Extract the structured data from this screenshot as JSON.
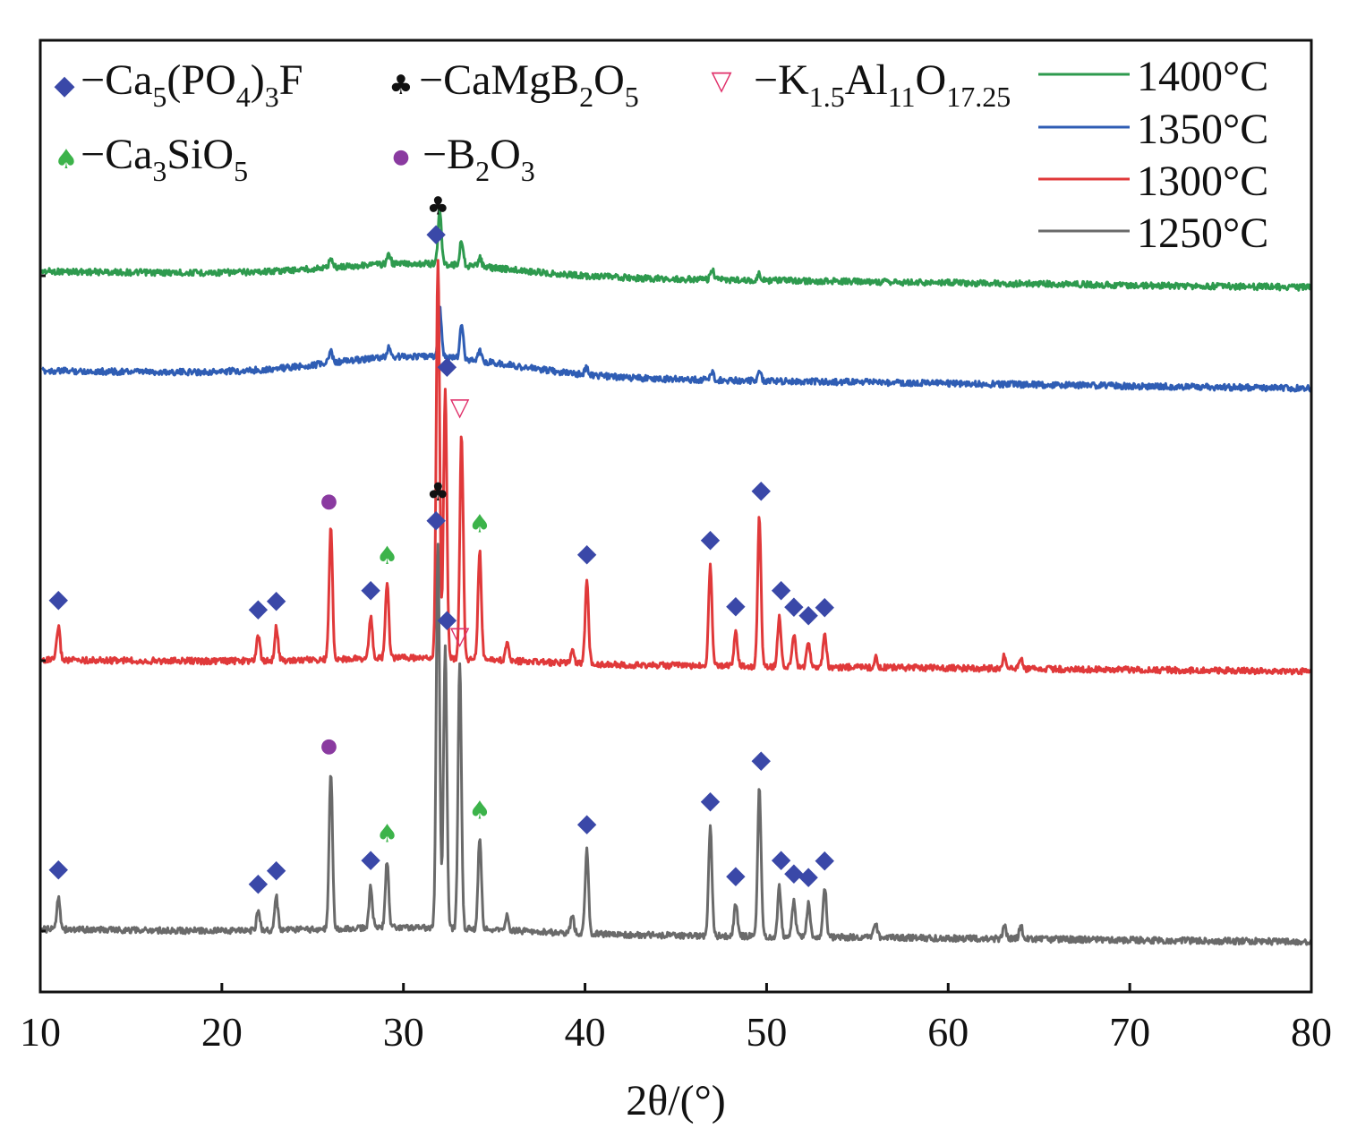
{
  "chart_data": {
    "type": "line",
    "title": "",
    "xlabel": "2θ/(°)",
    "ylabel": "",
    "xlim": [
      10,
      80
    ],
    "x_ticks": [
      10,
      20,
      30,
      40,
      50,
      60,
      70,
      80
    ],
    "grid": false,
    "legend_position": "top-right",
    "series": [
      {
        "name": "1400°C",
        "color": "#2e9a4e",
        "peaks": [
          [
            26.0,
            0.01
          ],
          [
            29.2,
            0.01
          ],
          [
            32.0,
            0.055
          ],
          [
            33.2,
            0.025
          ],
          [
            34.2,
            0.01
          ],
          [
            47.0,
            0.01
          ],
          [
            49.6,
            0.006
          ]
        ]
      },
      {
        "name": "1350°C",
        "color": "#2f5db4",
        "peaks": [
          [
            26.0,
            0.012
          ],
          [
            29.2,
            0.01
          ],
          [
            32.0,
            0.05
          ],
          [
            33.2,
            0.035
          ],
          [
            34.2,
            0.01
          ],
          [
            40.1,
            0.008
          ],
          [
            47.0,
            0.008
          ],
          [
            49.6,
            0.01
          ]
        ]
      },
      {
        "name": "1300°C",
        "color": "#e0393a",
        "peaks": [
          [
            11.0,
            0.02
          ],
          [
            22.0,
            0.015
          ],
          [
            23.0,
            0.02
          ],
          [
            26.0,
            0.08
          ],
          [
            28.2,
            0.025
          ],
          [
            29.1,
            0.045
          ],
          [
            31.9,
            0.24
          ],
          [
            32.3,
            0.16
          ],
          [
            33.2,
            0.135
          ],
          [
            34.2,
            0.065
          ],
          [
            35.7,
            0.01
          ],
          [
            39.3,
            0.008
          ],
          [
            40.1,
            0.05
          ],
          [
            46.9,
            0.06
          ],
          [
            48.3,
            0.02
          ],
          [
            49.6,
            0.09
          ],
          [
            50.7,
            0.03
          ],
          [
            51.5,
            0.02
          ],
          [
            52.3,
            0.015
          ],
          [
            53.2,
            0.02
          ],
          [
            56.0,
            0.006
          ],
          [
            63.1,
            0.008
          ],
          [
            64.0,
            0.006
          ]
        ]
      },
      {
        "name": "1250°C",
        "color": "#6a6a6a",
        "peaks": [
          [
            11.0,
            0.02
          ],
          [
            22.0,
            0.012
          ],
          [
            23.0,
            0.02
          ],
          [
            26.0,
            0.095
          ],
          [
            28.2,
            0.025
          ],
          [
            29.1,
            0.04
          ],
          [
            31.9,
            0.23
          ],
          [
            32.3,
            0.17
          ],
          [
            33.1,
            0.16
          ],
          [
            34.2,
            0.055
          ],
          [
            35.7,
            0.01
          ],
          [
            39.3,
            0.01
          ],
          [
            40.1,
            0.05
          ],
          [
            46.9,
            0.065
          ],
          [
            48.3,
            0.02
          ],
          [
            49.6,
            0.09
          ],
          [
            50.7,
            0.03
          ],
          [
            51.5,
            0.022
          ],
          [
            52.3,
            0.02
          ],
          [
            53.2,
            0.03
          ],
          [
            56.0,
            0.008
          ],
          [
            63.1,
            0.008
          ],
          [
            64.0,
            0.008
          ]
        ]
      }
    ],
    "phases": [
      {
        "symbol": "◆",
        "color": "#3a48a8",
        "formula": "−Ca5(PO4)3F"
      },
      {
        "symbol": "♣",
        "color": "#111111",
        "formula": "−CaMgB2O5"
      },
      {
        "symbol": "▽",
        "color": "#e0306a",
        "formula": "−K1.5Al11O17.25"
      },
      {
        "symbol": "♠",
        "color": "#3cb34a",
        "formula": "−Ca3SiO5"
      },
      {
        "symbol": "●",
        "color": "#8a3aa0",
        "formula": "−B2O3"
      }
    ],
    "annotations": [
      {
        "series": "1300°C",
        "phase": "Ca5(PO4)3F",
        "symbol": "◆",
        "x": [
          11.0,
          22.0,
          23.0,
          28.2,
          31.8,
          32.4,
          40.1,
          46.9,
          48.3,
          49.7,
          50.8,
          51.5,
          52.3,
          53.2
        ]
      },
      {
        "series": "1300°C",
        "phase": "CaMgB2O5",
        "symbol": "♣",
        "x": [
          31.9
        ]
      },
      {
        "series": "1300°C",
        "phase": "K1.5Al11O17.25",
        "symbol": "▽",
        "x": [
          33.1
        ]
      },
      {
        "series": "1300°C",
        "phase": "Ca3SiO5",
        "symbol": "♠",
        "x": [
          29.1,
          34.2
        ]
      },
      {
        "series": "1300°C",
        "phase": "B2O3",
        "symbol": "●",
        "x": [
          25.9
        ]
      },
      {
        "series": "1250°C",
        "phase": "Ca5(PO4)3F",
        "symbol": "◆",
        "x": [
          11.0,
          22.0,
          23.0,
          28.2,
          31.8,
          32.4,
          40.1,
          46.9,
          48.3,
          49.7,
          50.8,
          51.5,
          52.3,
          53.2
        ]
      },
      {
        "series": "1250°C",
        "phase": "CaMgB2O5",
        "symbol": "♣",
        "x": [
          31.9
        ]
      },
      {
        "series": "1250°C",
        "phase": "K1.5Al11O17.25",
        "symbol": "▽",
        "x": [
          33.1
        ]
      },
      {
        "series": "1250°C",
        "phase": "Ca3SiO5",
        "symbol": "♠",
        "x": [
          29.1,
          34.2
        ]
      },
      {
        "series": "1250°C",
        "phase": "B2O3",
        "symbol": "●",
        "x": [
          25.9
        ]
      }
    ]
  }
}
